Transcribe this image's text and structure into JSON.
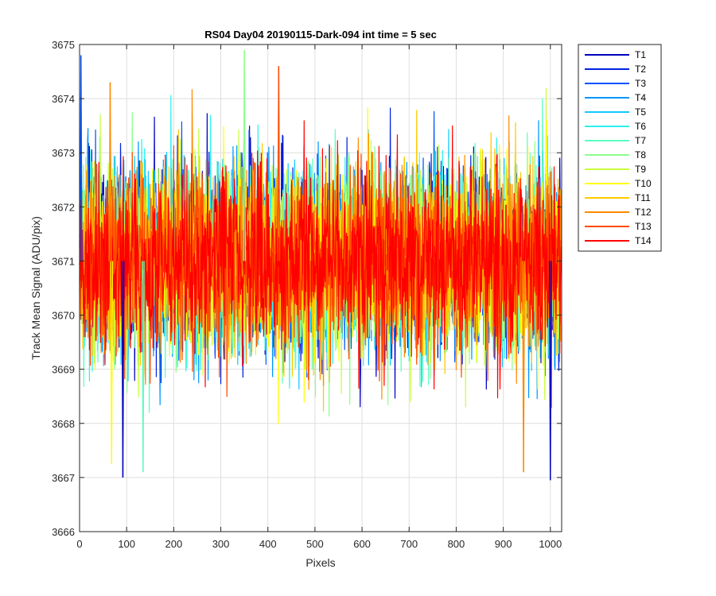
{
  "chart_data": {
    "type": "line",
    "title": "RS04 Day04 20190115-Dark-094 int time = 5 sec",
    "xlabel": "Pixels",
    "ylabel": "Track Mean Signal (ADU/pix)",
    "xlim": [
      0,
      1024
    ],
    "ylim": [
      3666,
      3675
    ],
    "xticks": [
      0,
      100,
      200,
      300,
      400,
      500,
      600,
      700,
      800,
      900,
      1000
    ],
    "yticks": [
      3666,
      3667,
      3668,
      3669,
      3670,
      3671,
      3672,
      3673,
      3674,
      3675
    ],
    "grid": true,
    "legend_position": "outside-top-right",
    "n_points_per_series": 1024,
    "approx_mean": 3671,
    "approx_range_typical": [
      3668.3,
      3673.8
    ],
    "extremes": [
      {
        "x": 3,
        "y": 3674.8,
        "series": "T3"
      },
      {
        "x": 92,
        "y": 3667.0,
        "series": "T1"
      },
      {
        "x": 1000,
        "y": 3666.95,
        "series": "T1"
      },
      {
        "x": 350,
        "y": 3674.9,
        "series": "T8"
      },
      {
        "x": 423,
        "y": 3674.6,
        "series": "T13"
      },
      {
        "x": 65,
        "y": 3674.3,
        "series": "T12"
      },
      {
        "x": 135,
        "y": 3667.1,
        "series": "T7"
      },
      {
        "x": 68,
        "y": 3667.25,
        "series": "T10"
      },
      {
        "x": 943,
        "y": 3667.1,
        "series": "T12"
      }
    ],
    "series": [
      {
        "name": "T1",
        "color": "#0000bf"
      },
      {
        "name": "T2",
        "color": "#0022e0"
      },
      {
        "name": "T3",
        "color": "#0052ff"
      },
      {
        "name": "T4",
        "color": "#0096ff"
      },
      {
        "name": "T5",
        "color": "#14c8ff"
      },
      {
        "name": "T6",
        "color": "#2cf0f0"
      },
      {
        "name": "T7",
        "color": "#5affbf"
      },
      {
        "name": "T8",
        "color": "#8cff8c"
      },
      {
        "name": "T9",
        "color": "#c8ff3c"
      },
      {
        "name": "T10",
        "color": "#ffff00"
      },
      {
        "name": "T11",
        "color": "#ffc800"
      },
      {
        "name": "T12",
        "color": "#ff8a00"
      },
      {
        "name": "T13",
        "color": "#ff4a00"
      },
      {
        "name": "T14",
        "color": "#ff0000"
      }
    ]
  }
}
